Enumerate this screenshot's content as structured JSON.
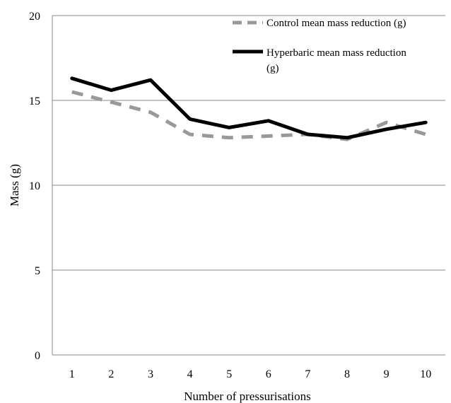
{
  "chart_data": {
    "type": "line",
    "title": "",
    "xlabel": "Number of pressurisations",
    "ylabel": "Mass (g)",
    "x": [
      1,
      2,
      3,
      4,
      5,
      6,
      7,
      8,
      9,
      10
    ],
    "ylim": [
      0,
      20
    ],
    "yticks": [
      0,
      5,
      10,
      15,
      20
    ],
    "grid": "horizontal",
    "legend_position": "top-right",
    "series": [
      {
        "name": "Control mean mass reduction (g)",
        "values": [
          15.5,
          14.9,
          14.3,
          13.0,
          12.8,
          12.9,
          13.0,
          12.7,
          13.7,
          13.0
        ],
        "color": "#999999",
        "style": "dashed"
      },
      {
        "name": "Hyperbaric mean mass reduction (g)",
        "name_lines": [
          "Hyperbaric mean mass reduction",
          "(g)"
        ],
        "values": [
          16.3,
          15.6,
          16.2,
          13.9,
          13.4,
          13.8,
          13.0,
          12.8,
          13.3,
          13.7
        ],
        "color": "#000000",
        "style": "solid"
      }
    ]
  }
}
